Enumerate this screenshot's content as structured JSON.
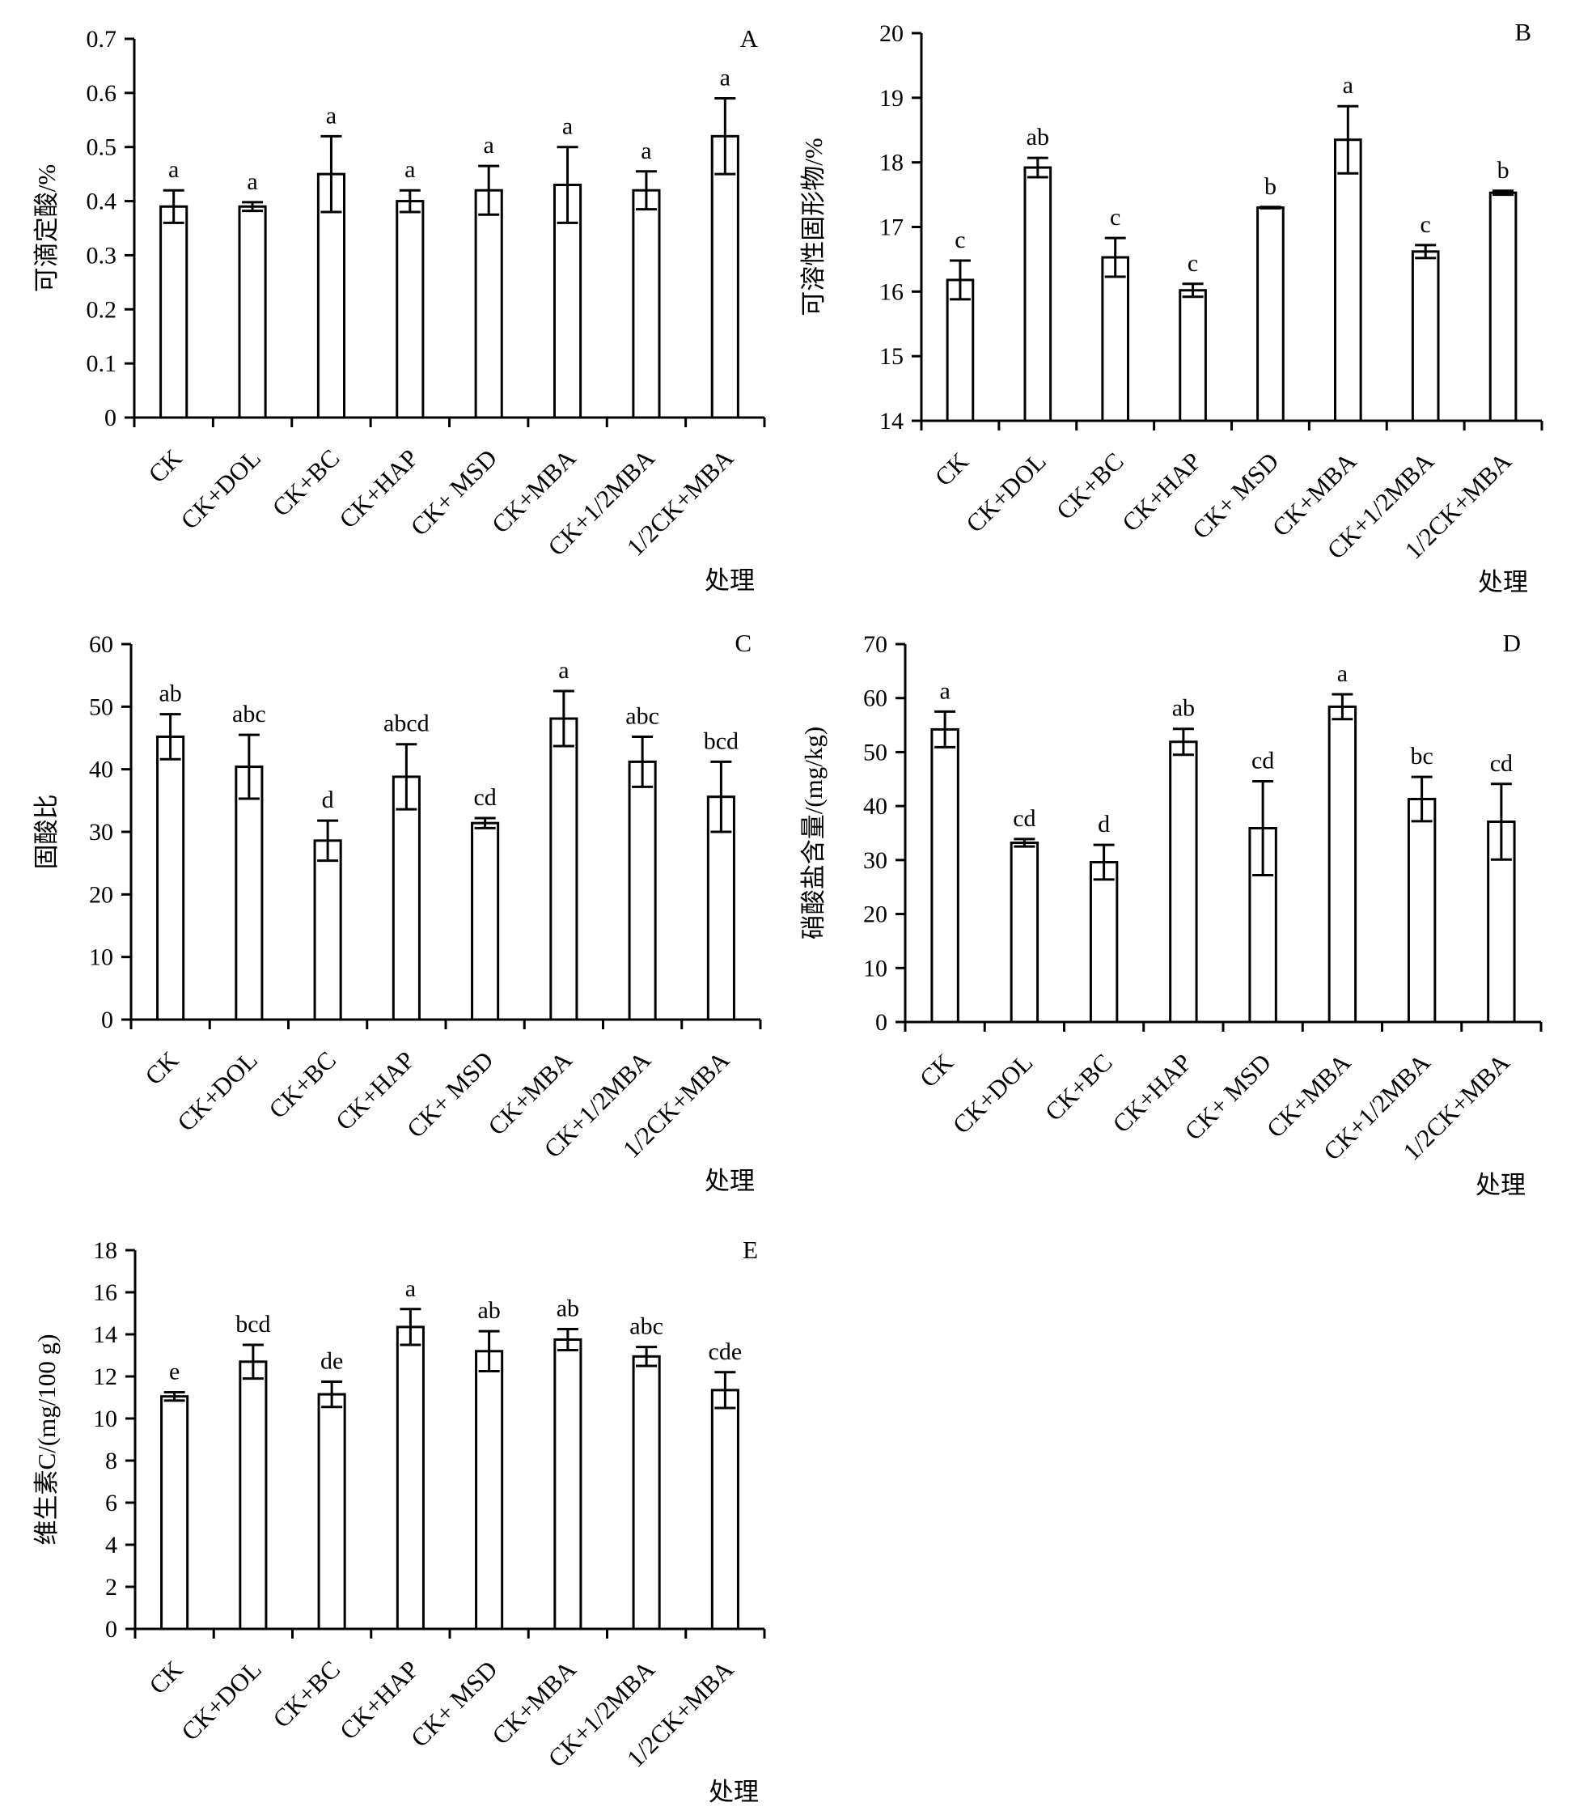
{
  "chart_data": [
    {
      "type": "bar",
      "panel": "A",
      "categories": [
        "CK",
        "CK+DOL",
        "CK+BC",
        "CK+HAP",
        "CK+ MSD",
        "CK+MBA",
        "CK+1/2MBA",
        "1/2CK+MBA"
      ],
      "values": [
        0.39,
        0.39,
        0.45,
        0.4,
        0.42,
        0.43,
        0.42,
        0.52
      ],
      "errors": [
        0.03,
        0.008,
        0.07,
        0.02,
        0.045,
        0.07,
        0.035,
        0.07
      ],
      "significance": [
        "a",
        "a",
        "a",
        "a",
        "a",
        "a",
        "a",
        "a"
      ],
      "title": "",
      "xlabel": "处理",
      "ylabel": "可滴定酸/%",
      "ylim": [
        0,
        0.7
      ],
      "yticks": [
        "0",
        "0.1",
        "0.2",
        "0.3",
        "0.4",
        "0.5",
        "0.6",
        "0.7"
      ]
    },
    {
      "type": "bar",
      "panel": "B",
      "categories": [
        "CK",
        "CK+DOL",
        "CK+BC",
        "CK+HAP",
        "CK+ MSD",
        "CK+MBA",
        "CK+1/2MBA",
        "1/2CK+MBA"
      ],
      "values": [
        16.18,
        17.92,
        16.53,
        16.02,
        17.3,
        18.35,
        16.62,
        17.53
      ],
      "errors": [
        0.3,
        0.15,
        0.3,
        0.1,
        0.01,
        0.52,
        0.1,
        0.03
      ],
      "significance": [
        "c",
        "ab",
        "c",
        "c",
        "b",
        "a",
        "c",
        "b"
      ],
      "title": "",
      "xlabel": "处理",
      "ylabel": "可溶性固形物/%",
      "ylim": [
        14,
        20
      ],
      "yticks": [
        "14",
        "15",
        "16",
        "17",
        "18",
        "19",
        "20"
      ]
    },
    {
      "type": "bar",
      "panel": "C",
      "categories": [
        "CK",
        "CK+DOL",
        "CK+BC",
        "CK+HAP",
        "CK+ MSD",
        "CK+MBA",
        "CK+1/2MBA",
        "1/2CK+MBA"
      ],
      "values": [
        45.2,
        40.4,
        28.6,
        38.8,
        31.4,
        48.1,
        41.2,
        35.6
      ],
      "errors": [
        3.6,
        5.1,
        3.2,
        5.2,
        0.8,
        4.4,
        4.0,
        5.6
      ],
      "significance": [
        "ab",
        "abc",
        "d",
        "abcd",
        "cd",
        "a",
        "abc",
        "bcd"
      ],
      "title": "",
      "xlabel": "处理",
      "ylabel": "固酸比",
      "ylim": [
        0,
        60
      ],
      "yticks": [
        "0",
        "10",
        "20",
        "30",
        "40",
        "50",
        "60"
      ]
    },
    {
      "type": "bar",
      "panel": "D",
      "categories": [
        "CK",
        "CK+DOL",
        "CK+BC",
        "CK+HAP",
        "CK+ MSD",
        "CK+MBA",
        "CK+1/2MBA",
        "1/2CK+MBA"
      ],
      "values": [
        54.2,
        33.2,
        29.6,
        51.9,
        35.9,
        58.4,
        41.3,
        37.1
      ],
      "errors": [
        3.3,
        0.7,
        3.2,
        2.4,
        8.7,
        2.3,
        4.1,
        7.0
      ],
      "significance": [
        "a",
        "cd",
        "d",
        "ab",
        "cd",
        "a",
        "bc",
        "cd"
      ],
      "title": "",
      "xlabel": "处理",
      "ylabel": "硝酸盐含量/(mg/kg)",
      "ylim": [
        0,
        70
      ],
      "yticks": [
        "0",
        "10",
        "20",
        "30",
        "40",
        "50",
        "60",
        "70"
      ]
    },
    {
      "type": "bar",
      "panel": "E",
      "categories": [
        "CK",
        "CK+DOL",
        "CK+BC",
        "CK+HAP",
        "CK+ MSD",
        "CK+MBA",
        "CK+1/2MBA",
        "1/2CK+MBA"
      ],
      "values": [
        11.05,
        12.7,
        11.15,
        14.35,
        13.2,
        13.75,
        12.95,
        11.35
      ],
      "errors": [
        0.2,
        0.8,
        0.6,
        0.85,
        0.95,
        0.5,
        0.45,
        0.85
      ],
      "significance": [
        "e",
        "bcd",
        "de",
        "a",
        "ab",
        "ab",
        "abc",
        "cde"
      ],
      "title": "",
      "xlabel": "处理",
      "ylabel": "维生素C/(mg/100 g)",
      "ylim": [
        0,
        18
      ],
      "yticks": [
        "0",
        "2",
        "4",
        "6",
        "8",
        "10",
        "12",
        "14",
        "16",
        "18"
      ]
    }
  ]
}
